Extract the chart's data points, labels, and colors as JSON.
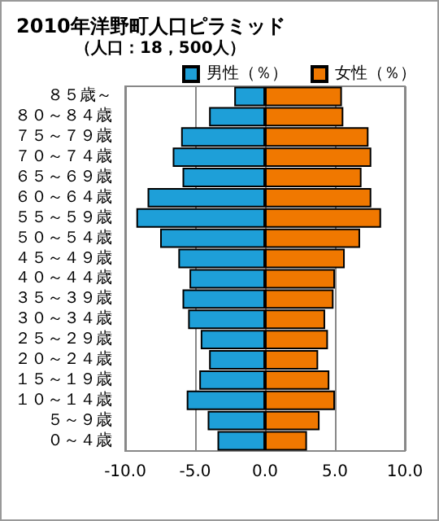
{
  "chart_data": {
    "type": "bar",
    "orientation": "horizontal",
    "title": "2010年洋野町人口ピラミッド",
    "subtitle": "（人口：18，500人）",
    "categories": [
      "８５歳～",
      "８０～８４歳",
      "７５～７９歳",
      "７０～７４歳",
      "６５～６９歳",
      "６０～６４歳",
      "５５～５９歳",
      "５０～５４歳",
      "４５～４９歳",
      "４０～４４歳",
      "３５～３９歳",
      "３０～３４歳",
      "２５～２９歳",
      "２０～２４歳",
      "１５～１９歳",
      "１０～１４歳",
      "５～９歳",
      "０～４歳"
    ],
    "series": [
      {
        "name": "男性（％）",
        "color": "#1e9fd8",
        "values": [
          -2.2,
          -4.0,
          -6.0,
          -6.6,
          -5.9,
          -8.4,
          -9.2,
          -7.5,
          -6.2,
          -5.4,
          -5.9,
          -5.5,
          -4.6,
          -4.0,
          -4.7,
          -5.6,
          -4.1,
          -3.4
        ]
      },
      {
        "name": "女性（％）",
        "color": "#f07800",
        "values": [
          5.5,
          5.6,
          7.4,
          7.6,
          6.9,
          7.6,
          8.3,
          6.8,
          5.7,
          5.0,
          4.9,
          4.3,
          4.5,
          3.8,
          4.6,
          5.0,
          3.9,
          3.0
        ]
      }
    ],
    "xlim": [
      -10,
      10
    ],
    "xticks": [
      {
        "value": -10,
        "label": "-10.0"
      },
      {
        "value": -5,
        "label": "-5.0"
      },
      {
        "value": 0,
        "label": "0.0"
      },
      {
        "value": 5,
        "label": "5.0"
      },
      {
        "value": 10,
        "label": "10.0"
      }
    ],
    "stacked": true,
    "grid": "x",
    "legend": "top right"
  }
}
